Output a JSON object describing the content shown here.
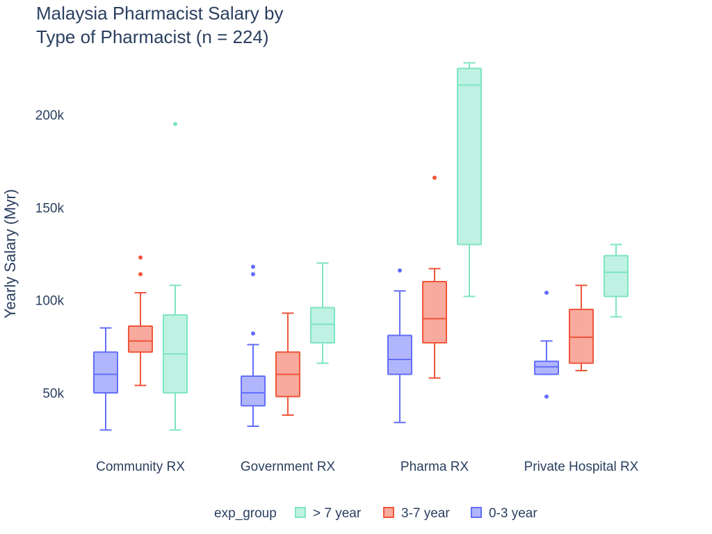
{
  "chart_data": {
    "type": "box",
    "title_lines": [
      "Malaysia Pharmacist Salary by",
      "Type of Pharmacist (n = 224)"
    ],
    "xlabel": "",
    "ylabel": "Yearly Salary (Myr)",
    "ylim": [
      20000,
      230000
    ],
    "y_ticks": [
      50000,
      100000,
      150000,
      200000
    ],
    "y_tick_labels": [
      "50k",
      "100k",
      "150k",
      "200k"
    ],
    "categories": [
      "Community RX",
      "Government RX",
      "Pharma RX",
      "Private Hospital RX"
    ],
    "legend_title": "exp_group",
    "legend_placement": "bottom",
    "series": [
      {
        "name": "0-3 year",
        "line_color": "#636efa",
        "fill_color": "#b1b6fc",
        "boxes": [
          {
            "category": "Community RX",
            "min": 30000,
            "q1": 50000,
            "median": 60000,
            "q3": 72000,
            "max": 85000,
            "outliers": []
          },
          {
            "category": "Government RX",
            "min": 32000,
            "q1": 43000,
            "median": 50000,
            "q3": 59000,
            "max": 76000,
            "outliers": [
              82000,
              114000,
              118000
            ]
          },
          {
            "category": "Pharma RX",
            "min": 34000,
            "q1": 60000,
            "median": 68000,
            "q3": 81000,
            "max": 105000,
            "outliers": [
              116000
            ]
          },
          {
            "category": "Private Hospital RX",
            "min": 60000,
            "q1": 60000,
            "median": 64000,
            "q3": 67000,
            "max": 78000,
            "outliers": [
              48000,
              104000
            ]
          }
        ]
      },
      {
        "name": "3-7 year",
        "line_color": "#ef553b",
        "fill_color": "#f7aa9d",
        "boxes": [
          {
            "category": "Community RX",
            "min": 54000,
            "q1": 72000,
            "median": 78000,
            "q3": 86000,
            "max": 104000,
            "outliers": [
              114000,
              123000
            ]
          },
          {
            "category": "Government RX",
            "min": 38000,
            "q1": 48000,
            "median": 60000,
            "q3": 72000,
            "max": 93000,
            "outliers": []
          },
          {
            "category": "Pharma RX",
            "min": 58000,
            "q1": 77000,
            "median": 90000,
            "q3": 110000,
            "max": 117000,
            "outliers": [
              166000
            ]
          },
          {
            "category": "Private Hospital RX",
            "min": 62000,
            "q1": 66000,
            "median": 80000,
            "q3": 95000,
            "max": 108000,
            "outliers": []
          }
        ]
      },
      {
        "name": "> 7 year",
        "line_color": "#7ee4c4",
        "fill_color": "#bff2e2",
        "boxes": [
          {
            "category": "Community RX",
            "min": 30000,
            "q1": 50000,
            "median": 71000,
            "q3": 92000,
            "max": 108000,
            "outliers": [
              195000
            ]
          },
          {
            "category": "Government RX",
            "min": 66000,
            "q1": 77000,
            "median": 87000,
            "q3": 96000,
            "max": 120000,
            "outliers": []
          },
          {
            "category": "Pharma RX",
            "min": 102000,
            "q1": 130000,
            "median": 216000,
            "q3": 225000,
            "max": 228000,
            "outliers": []
          },
          {
            "category": "Private Hospital RX",
            "min": 91000,
            "q1": 102000,
            "median": 115000,
            "q3": 124000,
            "max": 130000,
            "outliers": []
          }
        ]
      }
    ],
    "legend_order": [
      "> 7 year",
      "3-7 year",
      "0-3 year"
    ]
  }
}
